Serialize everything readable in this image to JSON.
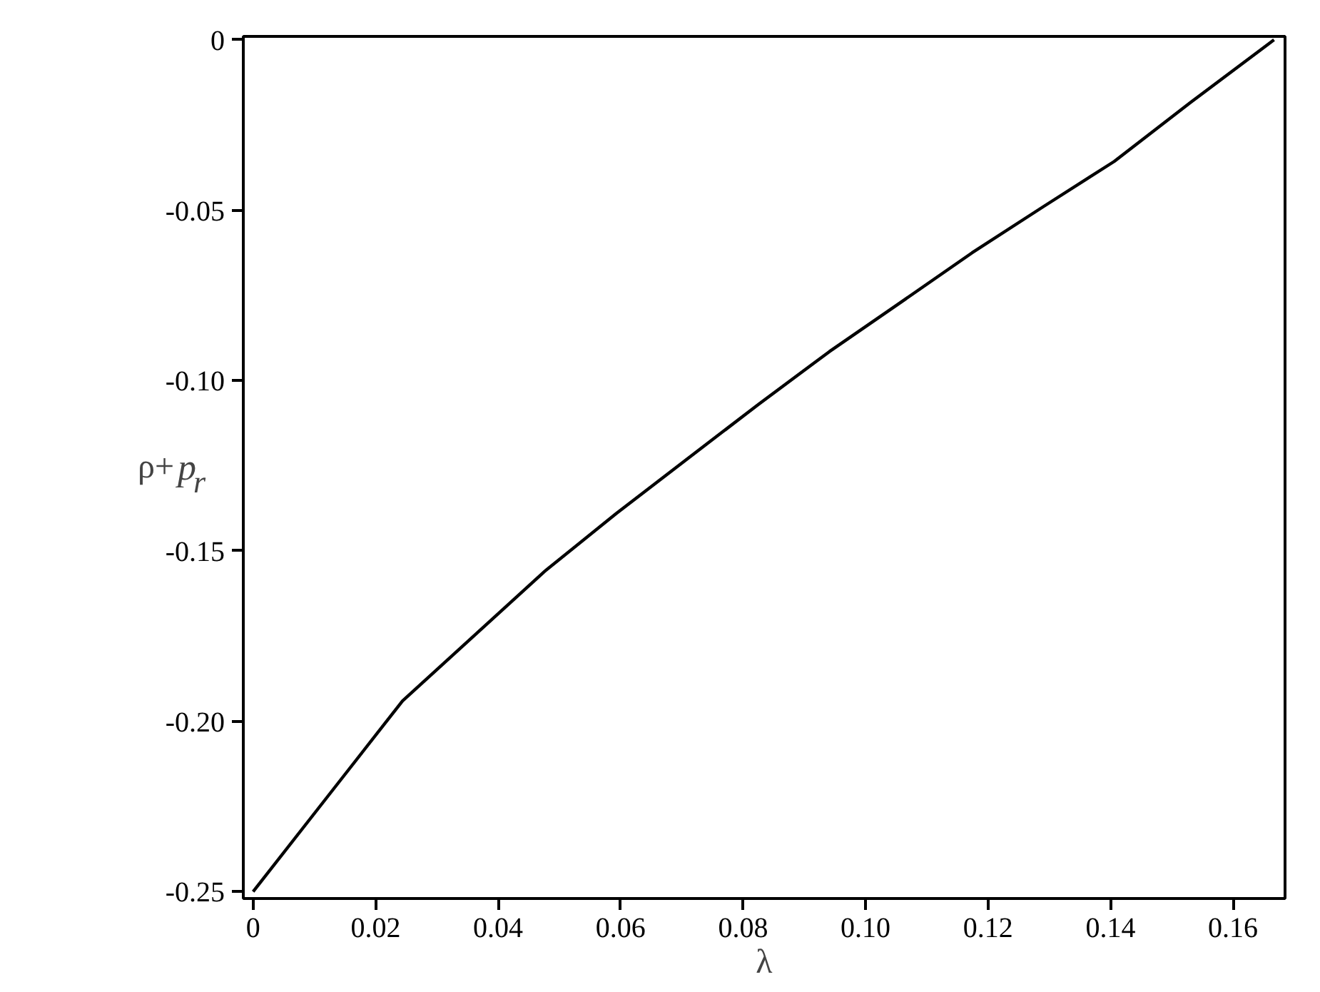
{
  "chart_data": {
    "type": "line",
    "xlabel": "λ",
    "ylabel": "ρ+p$_{r}$",
    "x": [
      0,
      0.0122,
      0.0244,
      0.036,
      0.0476,
      0.0593,
      0.0709,
      0.0825,
      0.0941,
      0.1058,
      0.1174,
      0.129,
      0.1406,
      0.153,
      0.1667
    ],
    "series": [
      {
        "color": "#000000",
        "values": [
          -0.25,
          -0.222,
          -0.194,
          -0.175,
          -0.156,
          -0.139,
          -0.123,
          -0.107,
          -0.0915,
          -0.077,
          -0.0625,
          -0.049,
          -0.0357,
          -0.0185,
          0
        ]
      }
    ],
    "xlim": [
      -0.0016,
      0.1685
    ],
    "ylim": [
      -0.252,
      0.001
    ],
    "xticks": [
      0,
      0.02,
      0.04,
      0.06,
      0.08,
      {
        "value": 0.1,
        "label": "0.10"
      },
      0.12,
      0.14,
      0.16
    ],
    "yticks": [
      {
        "value": -0.25,
        "label": "-0.25"
      },
      {
        "value": -0.2,
        "label": "-0.20"
      },
      {
        "value": -0.15,
        "label": "-0.15"
      },
      {
        "value": -0.1,
        "label": "-0.10"
      },
      {
        "value": -0.05,
        "label": "-0.05"
      },
      0
    ],
    "grid": false
  }
}
